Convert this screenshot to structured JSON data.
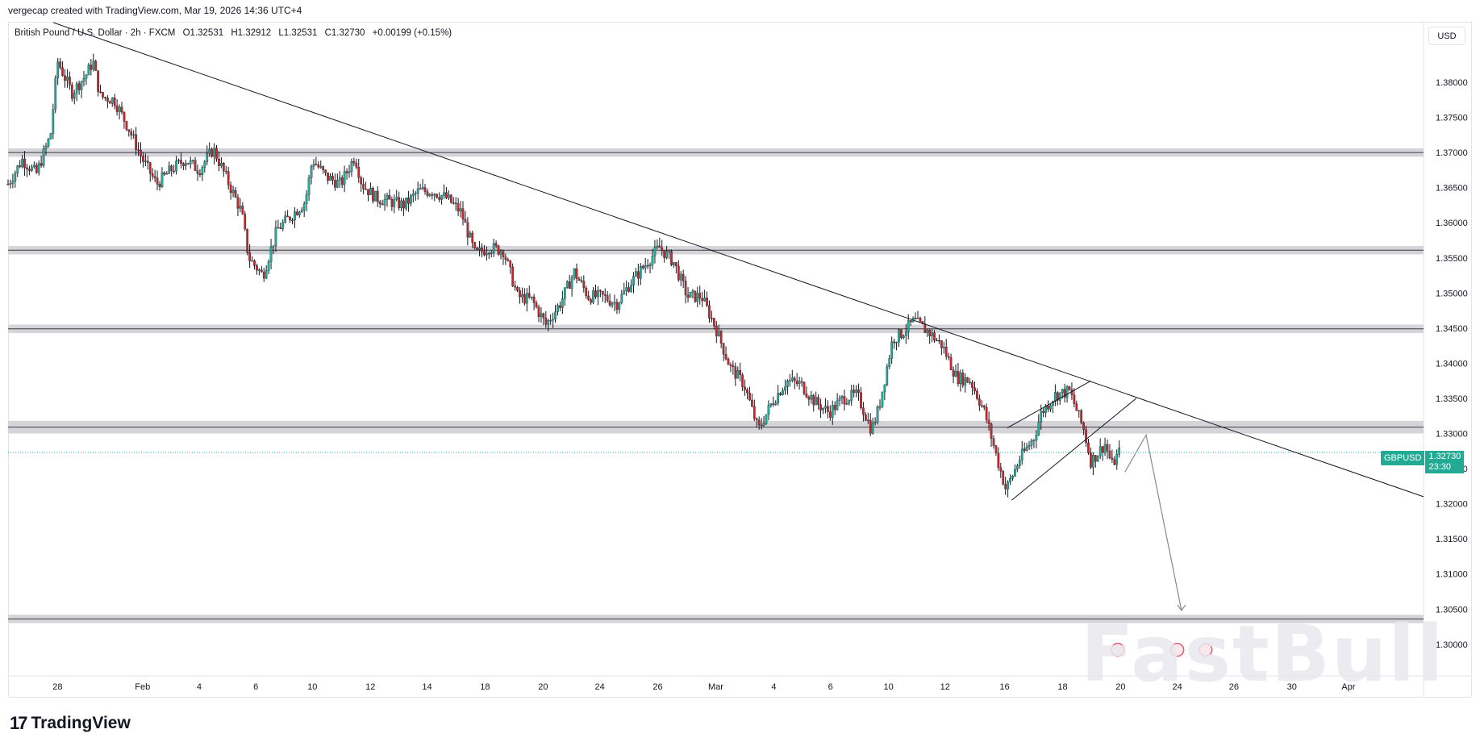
{
  "header": {
    "caption": "vergecap created with TradingView.com, Mar 19, 2026 14:36 UTC+4"
  },
  "legend": {
    "instrument": "British Pound / U.S. Dollar · 2h · FXCM",
    "open": "O1.32531",
    "high": "H1.32912",
    "low": "L1.32531",
    "close": "C1.32730",
    "change": "+0.00199 (+0.15%)"
  },
  "axis": {
    "currency_button": "USD"
  },
  "price_tag": {
    "symbol": "GBPUSD",
    "price": "1.32730",
    "countdown": "23:30"
  },
  "footer": {
    "logo_text": "TradingView",
    "logo_mark": "17"
  },
  "watermark": "FastBull",
  "colors": {
    "up": "#22ab94",
    "down": "#c1272d",
    "zone": "#d5d5d9",
    "line": "#131722",
    "current_price": "#22ab94",
    "projection": "#8a8a8a"
  },
  "chart_data": {
    "type": "candlestick",
    "symbol": "GBPUSD",
    "timeframe": "2h",
    "ylim": [
      1.2955,
      1.3885
    ],
    "y_ticks": [
      "1.38000",
      "1.37500",
      "1.37000",
      "1.36500",
      "1.36000",
      "1.35500",
      "1.35000",
      "1.34500",
      "1.34000",
      "1.33500",
      "1.33000",
      "1.32500",
      "1.32000",
      "1.31500",
      "1.31000",
      "1.30500",
      "1.30000"
    ],
    "y_tick_values": [
      1.38,
      1.375,
      1.37,
      1.365,
      1.36,
      1.355,
      1.35,
      1.345,
      1.34,
      1.335,
      1.33,
      1.325,
      1.32,
      1.315,
      1.31,
      1.305,
      1.3
    ],
    "x_ticks": [
      {
        "label": "28",
        "pos": 0.035
      },
      {
        "label": "Feb",
        "pos": 0.095
      },
      {
        "label": "4",
        "pos": 0.135
      },
      {
        "label": "6",
        "pos": 0.175
      },
      {
        "label": "10",
        "pos": 0.215
      },
      {
        "label": "12",
        "pos": 0.256
      },
      {
        "label": "14",
        "pos": 0.296
      },
      {
        "label": "18",
        "pos": 0.337
      },
      {
        "label": "20",
        "pos": 0.378
      },
      {
        "label": "24",
        "pos": 0.418
      },
      {
        "label": "26",
        "pos": 0.459
      },
      {
        "label": "Mar",
        "pos": 0.5
      },
      {
        "label": "4",
        "pos": 0.541
      },
      {
        "label": "6",
        "pos": 0.581
      },
      {
        "label": "10",
        "pos": 0.622
      },
      {
        "label": "12",
        "pos": 0.662
      },
      {
        "label": "16",
        "pos": 0.704
      },
      {
        "label": "18",
        "pos": 0.745
      },
      {
        "label": "20",
        "pos": 0.786
      },
      {
        "label": "24",
        "pos": 0.826
      },
      {
        "label": "26",
        "pos": 0.866
      },
      {
        "label": "30",
        "pos": 0.907
      },
      {
        "label": "Apr",
        "pos": 0.947
      }
    ],
    "price_path": [
      [
        0.0,
        1.3655
      ],
      [
        0.01,
        1.369
      ],
      [
        0.02,
        1.367
      ],
      [
        0.03,
        1.3725
      ],
      [
        0.035,
        1.383
      ],
      [
        0.045,
        1.3785
      ],
      [
        0.055,
        1.381
      ],
      [
        0.06,
        1.383
      ],
      [
        0.065,
        1.378
      ],
      [
        0.075,
        1.3775
      ],
      [
        0.085,
        1.3735
      ],
      [
        0.095,
        1.369
      ],
      [
        0.105,
        1.3655
      ],
      [
        0.115,
        1.3675
      ],
      [
        0.125,
        1.369
      ],
      [
        0.135,
        1.3675
      ],
      [
        0.145,
        1.3705
      ],
      [
        0.155,
        1.366
      ],
      [
        0.165,
        1.3615
      ],
      [
        0.17,
        1.355
      ],
      [
        0.18,
        1.3525
      ],
      [
        0.19,
        1.359
      ],
      [
        0.2,
        1.361
      ],
      [
        0.21,
        1.363
      ],
      [
        0.215,
        1.369
      ],
      [
        0.225,
        1.3665
      ],
      [
        0.235,
        1.3655
      ],
      [
        0.245,
        1.3695
      ],
      [
        0.25,
        1.3655
      ],
      [
        0.26,
        1.3635
      ],
      [
        0.27,
        1.363
      ],
      [
        0.28,
        1.3625
      ],
      [
        0.29,
        1.3645
      ],
      [
        0.3,
        1.3645
      ],
      [
        0.31,
        1.3635
      ],
      [
        0.32,
        1.3615
      ],
      [
        0.33,
        1.3555
      ],
      [
        0.34,
        1.3565
      ],
      [
        0.35,
        1.356
      ],
      [
        0.36,
        1.3495
      ],
      [
        0.37,
        1.349
      ],
      [
        0.38,
        1.3455
      ],
      [
        0.39,
        1.3485
      ],
      [
        0.4,
        1.353
      ],
      [
        0.41,
        1.3495
      ],
      [
        0.42,
        1.3495
      ],
      [
        0.43,
        1.3485
      ],
      [
        0.44,
        1.3515
      ],
      [
        0.45,
        1.354
      ],
      [
        0.46,
        1.3565
      ],
      [
        0.47,
        1.3545
      ],
      [
        0.48,
        1.3495
      ],
      [
        0.49,
        1.3495
      ],
      [
        0.5,
        1.345
      ],
      [
        0.51,
        1.3395
      ],
      [
        0.52,
        1.337
      ],
      [
        0.53,
        1.3305
      ],
      [
        0.54,
        1.3345
      ],
      [
        0.55,
        1.3375
      ],
      [
        0.56,
        1.337
      ],
      [
        0.57,
        1.3345
      ],
      [
        0.58,
        1.333
      ],
      [
        0.59,
        1.335
      ],
      [
        0.6,
        1.3355
      ],
      [
        0.61,
        1.3305
      ],
      [
        0.615,
        1.3335
      ],
      [
        0.625,
        1.3435
      ],
      [
        0.63,
        1.344
      ],
      [
        0.64,
        1.346
      ],
      [
        0.65,
        1.3445
      ],
      [
        0.66,
        1.3425
      ],
      [
        0.67,
        1.338
      ],
      [
        0.68,
        1.3375
      ],
      [
        0.69,
        1.333
      ],
      [
        0.7,
        1.3255
      ],
      [
        0.705,
        1.322
      ],
      [
        0.715,
        1.3265
      ],
      [
        0.725,
        1.3295
      ],
      [
        0.73,
        1.333
      ],
      [
        0.74,
        1.3355
      ],
      [
        0.75,
        1.336
      ],
      [
        0.76,
        1.3305
      ],
      [
        0.765,
        1.326
      ],
      [
        0.775,
        1.3285
      ],
      [
        0.78,
        1.3255
      ],
      [
        0.785,
        1.3273
      ]
    ],
    "horizontal_zones": [
      {
        "center": 1.37,
        "half_height": 0.0006
      },
      {
        "center": 1.3561,
        "half_height": 0.0006
      },
      {
        "center": 1.3449,
        "half_height": 0.0006
      },
      {
        "center": 1.3309,
        "half_height": 0.0009
      },
      {
        "center": 1.3036,
        "half_height": 0.0006
      }
    ],
    "trendline": [
      [
        0.032,
        1.3885
      ],
      [
        1.0,
        1.321
      ]
    ],
    "channel": {
      "lower": [
        [
          0.709,
          1.3205
        ],
        [
          0.797,
          1.335
        ]
      ],
      "upper": [
        [
          0.706,
          1.3308
        ],
        [
          0.765,
          1.3375
        ]
      ]
    },
    "projection": [
      [
        0.789,
        1.3245
      ],
      [
        0.804,
        1.3298
      ],
      [
        0.829,
        1.3048
      ]
    ],
    "current_price": 1.3273
  }
}
